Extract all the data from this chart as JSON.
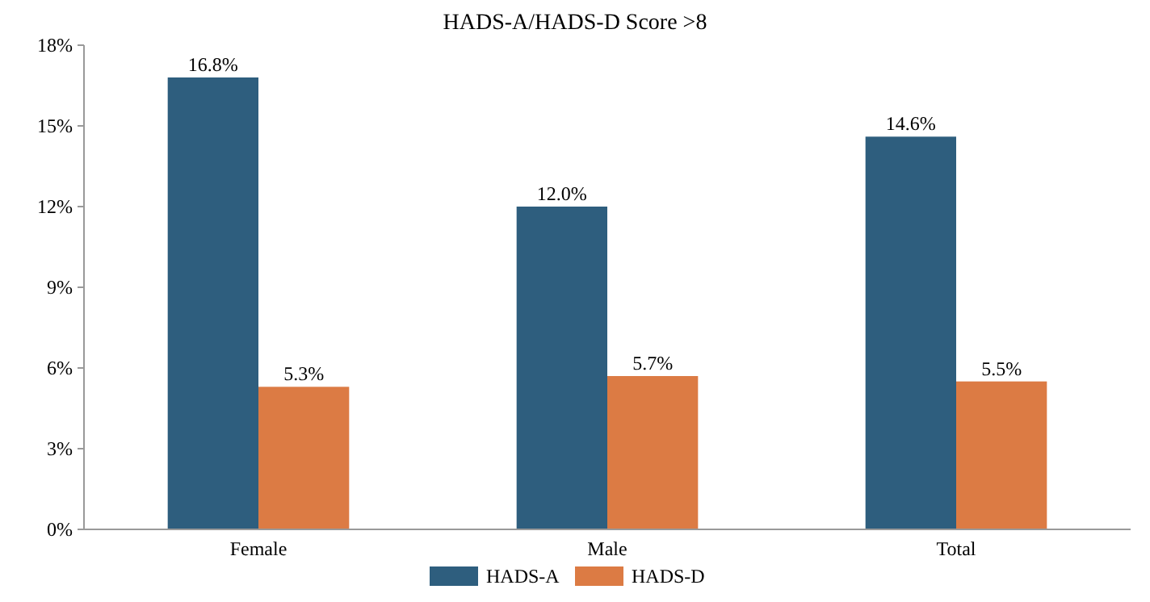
{
  "chart_data": {
    "type": "bar",
    "title": "HADS-A/HADS-D Score >8",
    "categories": [
      "Female",
      "Male",
      "Total"
    ],
    "series": [
      {
        "name": "HADS-A",
        "color": "#2e5e7e",
        "values": [
          16.8,
          12.0,
          14.6
        ],
        "value_labels": [
          "16.8%",
          "12.0%",
          "14.6%"
        ]
      },
      {
        "name": "HADS-D",
        "color": "#dc7b44",
        "values": [
          5.3,
          5.7,
          5.5
        ],
        "value_labels": [
          "5.3%",
          "5.7%",
          "5.5%"
        ]
      }
    ],
    "ylim": [
      0,
      18
    ],
    "yticks": [
      {
        "value": 0,
        "label": "0%"
      },
      {
        "value": 3,
        "label": "3%"
      },
      {
        "value": 6,
        "label": "6%"
      },
      {
        "value": 9,
        "label": "9%"
      },
      {
        "value": 12,
        "label": "12%"
      },
      {
        "value": 15,
        "label": "15%"
      },
      {
        "value": 18,
        "label": "18%"
      }
    ],
    "grid": false,
    "legend": "bottom"
  }
}
